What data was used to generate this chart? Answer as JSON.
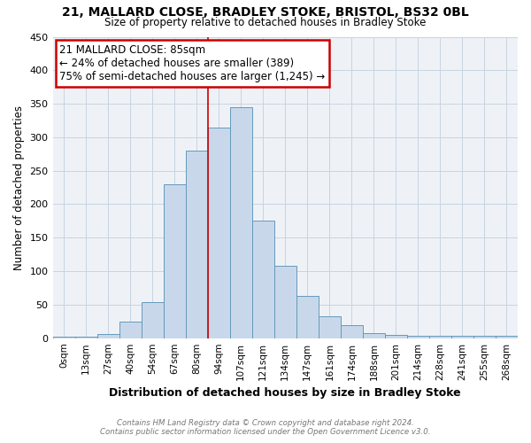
{
  "title": "21, MALLARD CLOSE, BRADLEY STOKE, BRISTOL, BS32 0BL",
  "subtitle": "Size of property relative to detached houses in Bradley Stoke",
  "xlabel": "Distribution of detached houses by size in Bradley Stoke",
  "ylabel": "Number of detached properties",
  "footnote1": "Contains HM Land Registry data © Crown copyright and database right 2024.",
  "footnote2": "Contains public sector information licensed under the Open Government Licence v3.0.",
  "bin_labels": [
    "0sqm",
    "13sqm",
    "27sqm",
    "40sqm",
    "54sqm",
    "67sqm",
    "80sqm",
    "94sqm",
    "107sqm",
    "121sqm",
    "134sqm",
    "147sqm",
    "161sqm",
    "174sqm",
    "188sqm",
    "201sqm",
    "214sqm",
    "228sqm",
    "241sqm",
    "255sqm",
    "268sqm"
  ],
  "bar_heights": [
    2,
    2,
    6,
    25,
    54,
    230,
    280,
    315,
    345,
    175,
    108,
    63,
    33,
    19,
    7,
    5,
    3,
    3,
    3,
    3,
    3
  ],
  "bar_color": "#c8d8ea",
  "bar_edge_color": "#6699bb",
  "property_bin_index": 6,
  "property_label": "21 MALLARD CLOSE: 85sqm",
  "annotation_line1": "← 24% of detached houses are smaller (389)",
  "annotation_line2": "75% of semi-detached houses are larger (1,245) →",
  "annotation_box_color": "#ffffff",
  "annotation_box_edge": "#cc0000",
  "vline_color": "#cc0000",
  "ylim": [
    0,
    450
  ],
  "yticks": [
    0,
    50,
    100,
    150,
    200,
    250,
    300,
    350,
    400,
    450
  ],
  "grid_color": "#c8d4e0",
  "bg_color": "#eef2f7",
  "title_fontsize": 10,
  "subtitle_fontsize": 9
}
